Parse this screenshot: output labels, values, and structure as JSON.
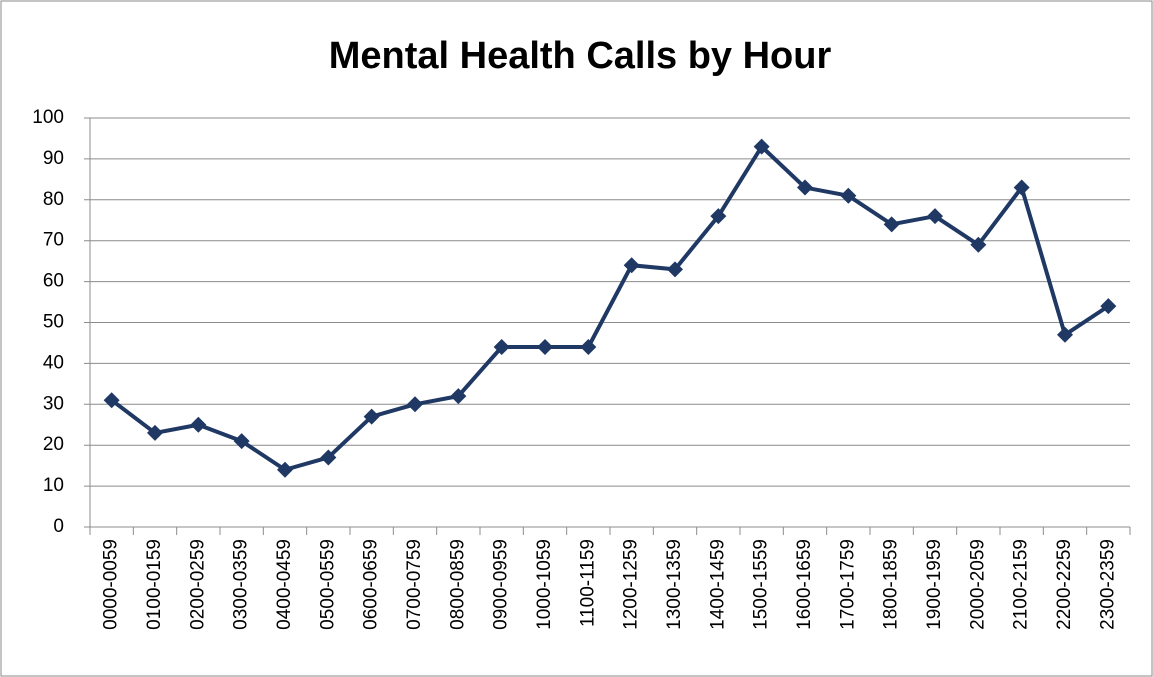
{
  "chart_data": {
    "type": "line",
    "title": "Mental Health Calls by Hour",
    "categories": [
      "0000-0059",
      "0100-0159",
      "0200-0259",
      "0300-0359",
      "0400-0459",
      "0500-0559",
      "0600-0659",
      "0700-0759",
      "0800-0859",
      "0900-0959",
      "1000-1059",
      "1100-1159",
      "1200-1259",
      "1300-1359",
      "1400-1459",
      "1500-1559",
      "1600-1659",
      "1700-1759",
      "1800-1859",
      "1900-1959",
      "2000-2059",
      "2100-2159",
      "2200-2259",
      "2300-2359"
    ],
    "values": [
      31,
      23,
      25,
      21,
      14,
      17,
      27,
      30,
      32,
      44,
      44,
      44,
      64,
      63,
      76,
      93,
      83,
      81,
      74,
      76,
      69,
      83,
      47,
      54
    ],
    "color": "#1f3864",
    "ylim": [
      0,
      100
    ],
    "yticks": [
      0,
      10,
      20,
      30,
      40,
      50,
      60,
      70,
      80,
      90,
      100
    ],
    "grid": true
  }
}
